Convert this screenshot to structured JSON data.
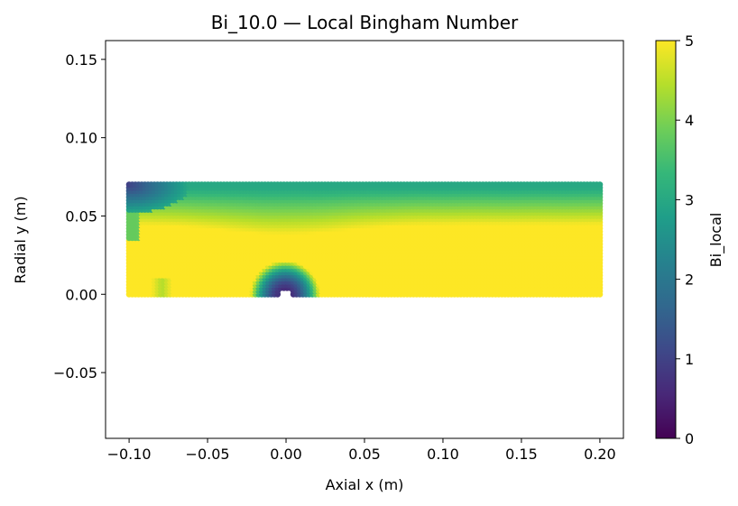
{
  "chart_data": {
    "type": "heatmap",
    "title": "Bi_10.0 — Local Bingham Number",
    "xlabel": "Axial x (m)",
    "ylabel": "Radial y (m)",
    "xlim": [
      -0.115,
      0.215
    ],
    "ylim": [
      -0.092,
      0.162
    ],
    "x_ticks": [
      -0.1,
      -0.05,
      0.0,
      0.05,
      0.1,
      0.15,
      0.2
    ],
    "x_tick_labels": [
      "−0.10",
      "−0.05",
      "0.00",
      "0.05",
      "0.10",
      "0.15",
      "0.20"
    ],
    "y_ticks": [
      -0.05,
      0.0,
      0.05,
      0.1,
      0.15
    ],
    "y_tick_labels": [
      "−0.05",
      "0.00",
      "0.05",
      "0.10",
      "0.15"
    ],
    "domain": {
      "x": [
        -0.1,
        0.2
      ],
      "y": [
        0.0,
        0.07
      ]
    },
    "colormap": "viridis",
    "colorbar": {
      "label": "Bi_local",
      "range": [
        0,
        5
      ],
      "ticks": [
        0,
        1,
        2,
        3,
        4,
        5
      ],
      "tick_labels": [
        "0",
        "1",
        "2",
        "3",
        "4",
        "5"
      ]
    },
    "field_description": {
      "bulk_value": 5,
      "top_wall_value": 3.0,
      "obstacle_center": [
        0.0,
        0.0
      ],
      "obstacle_low_value": 0.5,
      "inlet_corner_low_value": 1.0
    },
    "grid": false
  },
  "colors": {
    "viridis": [
      "#440154",
      "#482878",
      "#3e4989",
      "#31688e",
      "#26828e",
      "#1f9e89",
      "#35b779",
      "#6ece58",
      "#b5de2b",
      "#fde725"
    ]
  }
}
